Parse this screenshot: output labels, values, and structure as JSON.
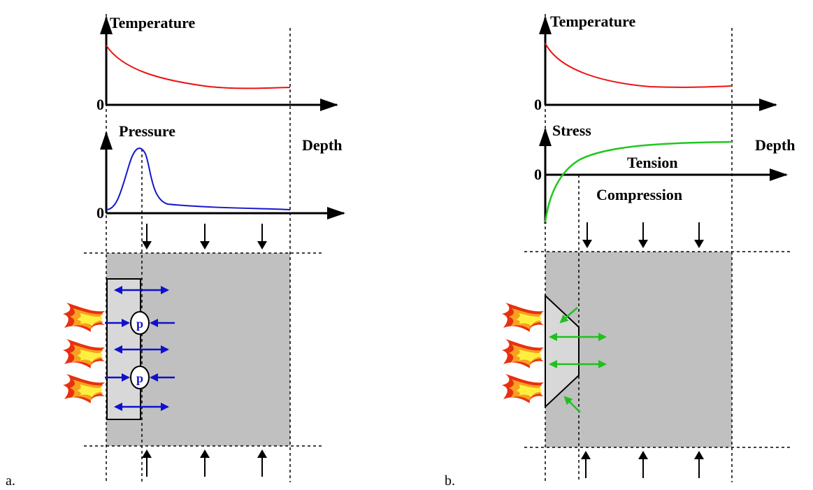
{
  "panels": [
    {
      "label": "a.",
      "top_plot": {
        "title": "Temperature",
        "zero": "0"
      },
      "bottom_plot": {
        "title": "Pressure",
        "zero": "0"
      },
      "axis_label": "Depth",
      "markers": [
        "p",
        "p"
      ]
    },
    {
      "label": "b.",
      "top_plot": {
        "title": "Temperature",
        "zero": "0"
      },
      "bottom_plot": {
        "title": "Stress",
        "zero": "0",
        "upper": "Tension",
        "lower": "Compression"
      },
      "axis_label": "Depth"
    }
  ]
}
